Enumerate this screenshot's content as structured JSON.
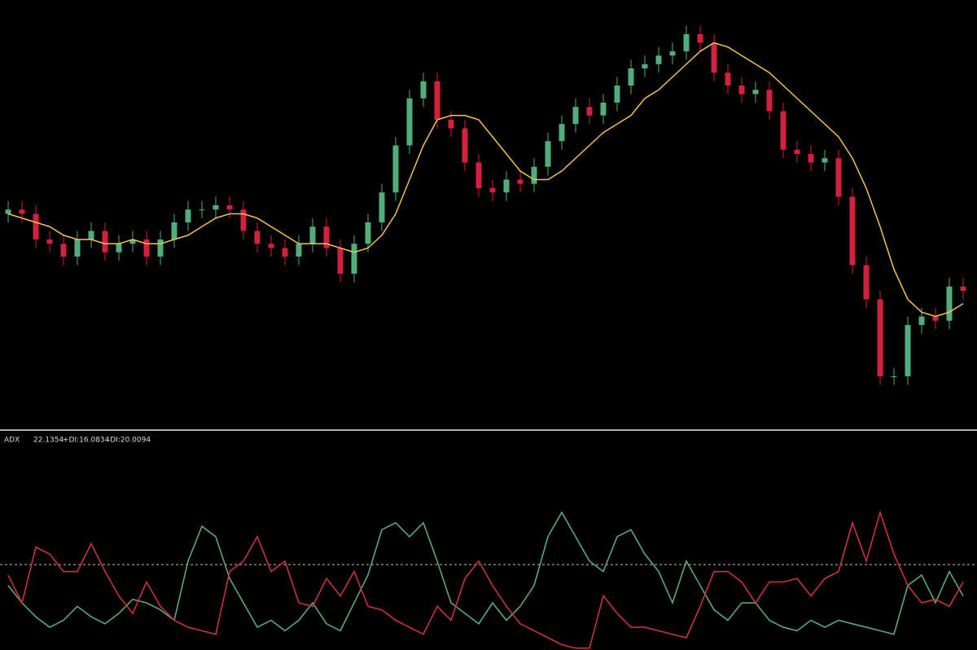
{
  "chart_data": [
    {
      "type": "candlestick",
      "open": [
        50,
        51,
        50,
        44,
        43,
        40,
        44,
        46,
        41,
        43,
        44,
        40,
        44,
        48,
        51,
        51,
        52,
        51,
        46,
        43,
        42,
        40,
        43,
        47,
        42,
        36,
        43,
        48,
        55,
        66,
        77,
        81,
        72,
        70,
        62,
        56,
        55,
        58,
        57,
        61,
        67,
        71,
        75,
        73,
        76,
        80,
        84,
        85,
        87,
        88,
        92,
        90,
        83,
        80,
        78,
        79,
        74,
        65,
        64,
        62,
        63,
        54,
        38,
        30,
        12,
        12,
        24,
        26,
        25,
        33
      ],
      "high": [
        53,
        53,
        52,
        46,
        45,
        46,
        48,
        48,
        45,
        46,
        46,
        46,
        50,
        53,
        53,
        54,
        54,
        53,
        48,
        45,
        44,
        45,
        49,
        49,
        44,
        45,
        50,
        57,
        68,
        79,
        83,
        83,
        74,
        72,
        64,
        58,
        60,
        60,
        63,
        69,
        73,
        77,
        77,
        78,
        82,
        86,
        87,
        89,
        90,
        94,
        94,
        92,
        85,
        82,
        81,
        81,
        76,
        67,
        66,
        65,
        65,
        56,
        40,
        32,
        14,
        26,
        28,
        28,
        35,
        35
      ],
      "low": [
        48,
        48,
        42,
        41,
        38,
        38,
        42,
        39,
        39,
        41,
        38,
        38,
        42,
        46,
        49,
        49,
        49,
        44,
        41,
        40,
        38,
        38,
        41,
        40,
        34,
        34,
        41,
        46,
        53,
        64,
        75,
        70,
        68,
        60,
        54,
        53,
        53,
        55,
        55,
        59,
        65,
        69,
        71,
        71,
        74,
        78,
        82,
        83,
        85,
        86,
        88,
        81,
        78,
        76,
        76,
        72,
        63,
        62,
        60,
        60,
        52,
        36,
        28,
        10,
        10,
        10,
        22,
        23,
        23,
        30
      ],
      "close": [
        51,
        50,
        44,
        43,
        40,
        44,
        46,
        41,
        43,
        44,
        40,
        44,
        48,
        51,
        51,
        52,
        51,
        46,
        43,
        42,
        40,
        43,
        47,
        42,
        36,
        43,
        48,
        55,
        66,
        77,
        81,
        72,
        70,
        62,
        56,
        55,
        58,
        57,
        61,
        67,
        71,
        75,
        73,
        76,
        80,
        84,
        85,
        87,
        88,
        92,
        90,
        83,
        80,
        78,
        79,
        74,
        65,
        64,
        62,
        63,
        54,
        38,
        30,
        12,
        12,
        24,
        26,
        25,
        33,
        32
      ],
      "up_color": "#4fae7c",
      "down_color": "#d2203f",
      "ma": {
        "color": "#f2c14e",
        "values": [
          50,
          49,
          48,
          47,
          45,
          44,
          44,
          43,
          43,
          44,
          43,
          43,
          44,
          45,
          47,
          49,
          50,
          50,
          49,
          47,
          45,
          43,
          43,
          43,
          42,
          41,
          42,
          45,
          50,
          58,
          66,
          72,
          73,
          73,
          72,
          68,
          64,
          60,
          58,
          58,
          60,
          63,
          66,
          69,
          71,
          73,
          77,
          79,
          82,
          85,
          88,
          90,
          89,
          87,
          85,
          83,
          80,
          77,
          74,
          71,
          68,
          63,
          56,
          47,
          37,
          30,
          27,
          26,
          27,
          29
        ]
      },
      "ylim": [
        0,
        100
      ]
    },
    {
      "type": "line",
      "label": "ADX",
      "readout": [
        "22.1354",
        "+DI:16.0834",
        "-DI:20.0094"
      ],
      "ylim": [
        0,
        58
      ],
      "level": 25,
      "series": [
        {
          "color": "#5aa878",
          "values": [
            19,
            14,
            10,
            7,
            9,
            13,
            10,
            8,
            11,
            15,
            14,
            12,
            9,
            26,
            36,
            33,
            21,
            14,
            7,
            9,
            6,
            9,
            14,
            8,
            6,
            14,
            22,
            35,
            37,
            33,
            37,
            26,
            14,
            11,
            8,
            14,
            9,
            13,
            19,
            33,
            40,
            33,
            26,
            23,
            33,
            35,
            28,
            23,
            14,
            26,
            19,
            12,
            9,
            14,
            14,
            9,
            7,
            6,
            9,
            7,
            9,
            8,
            7,
            6,
            5,
            19,
            22,
            14,
            23,
            16
          ]
        },
        {
          "color": "#c8323c",
          "values": [
            22,
            14,
            30,
            28,
            23,
            23,
            31,
            23,
            16,
            11,
            20,
            13,
            9,
            7,
            6,
            5,
            23,
            26,
            33,
            23,
            26,
            14,
            13,
            21,
            16,
            23,
            13,
            12,
            9,
            7,
            5,
            13,
            9,
            21,
            26,
            19,
            13,
            8,
            6,
            4,
            2,
            1,
            1,
            16,
            11,
            7,
            7,
            6,
            5,
            4,
            13,
            23,
            23,
            20,
            14,
            20,
            20,
            21,
            16,
            21,
            23,
            37,
            26,
            40,
            28,
            19,
            14,
            15,
            13,
            20
          ]
        }
      ]
    }
  ]
}
